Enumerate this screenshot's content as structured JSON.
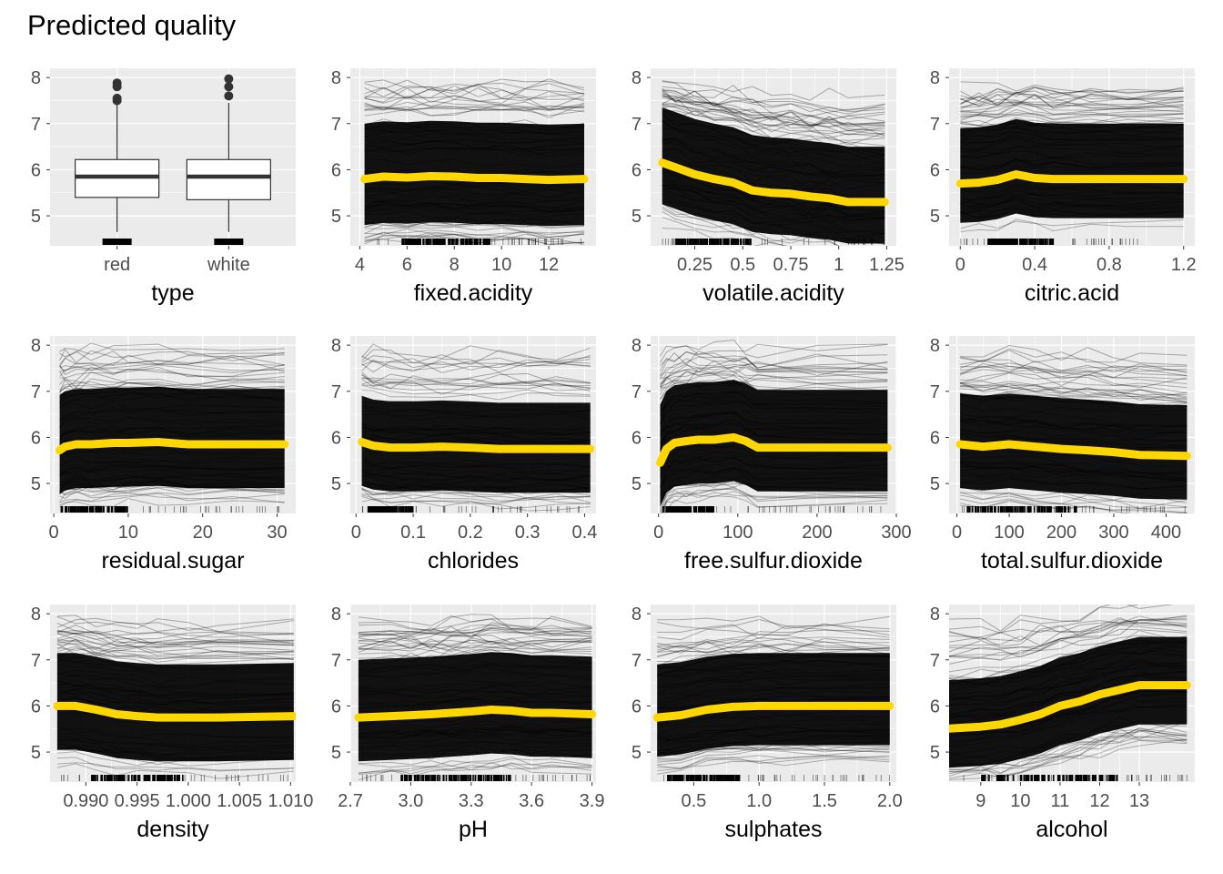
{
  "title": "Predicted quality",
  "colors": {
    "panel": "#EBEBEB",
    "grid": "#FFFFFF",
    "ice": "#000000",
    "pdp": "#FFD700",
    "axis_text": "#4D4D4D",
    "label": "#000000"
  },
  "chart_data": [
    {
      "type": "boxplot",
      "var": "type",
      "xlabel": "type",
      "categories": [
        "red",
        "white"
      ],
      "boxes": [
        {
          "name": "red",
          "q1": 5.4,
          "median": 5.85,
          "q3": 6.22,
          "lower": 4.65,
          "upper": 7.45,
          "outliers": [
            7.5,
            7.55,
            7.8,
            7.88
          ]
        },
        {
          "name": "white",
          "q1": 5.35,
          "median": 5.85,
          "q3": 6.22,
          "lower": 4.65,
          "upper": 7.45,
          "outliers": [
            7.6,
            7.8,
            7.97
          ]
        }
      ],
      "ylim": [
        4.35,
        8.2
      ],
      "yticks": [
        5,
        6,
        7,
        8
      ]
    },
    {
      "type": "line",
      "var": "fixed.acidity",
      "xlabel": "fixed.acidity",
      "xlim": [
        3.6,
        14.0
      ],
      "xticks": [
        4,
        6,
        8,
        10,
        12
      ],
      "pdp_x": [
        4.2,
        5.0,
        6.0,
        7.0,
        8.0,
        9.0,
        10.0,
        11.0,
        12.0,
        13.5
      ],
      "pdp_y": [
        5.8,
        5.85,
        5.83,
        5.86,
        5.85,
        5.82,
        5.82,
        5.8,
        5.78,
        5.8
      ],
      "ice_band": [
        4.85,
        7.05
      ],
      "rug_range": [
        4.6,
        13.4
      ],
      "rug_dense": [
        5.8,
        9.5
      ],
      "ylim": [
        4.35,
        8.2
      ],
      "yticks": [
        5,
        6,
        7,
        8
      ]
    },
    {
      "type": "line",
      "var": "volatile.acidity",
      "xlabel": "volatile.acidity",
      "xlim": [
        0.02,
        1.3
      ],
      "xticks": [
        0.25,
        0.5,
        0.75,
        1.0,
        1.25
      ],
      "pdp_x": [
        0.08,
        0.15,
        0.25,
        0.35,
        0.45,
        0.55,
        0.65,
        0.75,
        0.85,
        0.95,
        1.05,
        1.24
      ],
      "pdp_y": [
        6.15,
        6.05,
        5.9,
        5.8,
        5.72,
        5.55,
        5.5,
        5.48,
        5.42,
        5.38,
        5.3,
        5.3
      ],
      "ice_band": [
        4.95,
        7.05
      ],
      "rug_range": [
        0.08,
        1.24
      ],
      "rug_dense": [
        0.15,
        0.55
      ],
      "ylim": [
        4.35,
        8.2
      ],
      "yticks": [
        5,
        6,
        7,
        8
      ]
    },
    {
      "type": "line",
      "var": "citric.acid",
      "xlabel": "citric.acid",
      "xlim": [
        -0.06,
        1.26
      ],
      "xticks": [
        0.0,
        0.4,
        0.8,
        1.2
      ],
      "pdp_x": [
        0.0,
        0.1,
        0.2,
        0.3,
        0.4,
        0.5,
        0.7,
        0.9,
        1.2
      ],
      "pdp_y": [
        5.7,
        5.72,
        5.78,
        5.9,
        5.82,
        5.8,
        5.8,
        5.8,
        5.8
      ],
      "ice_band": [
        5.0,
        7.05
      ],
      "rug_range": [
        0.0,
        1.0
      ],
      "rug_dense": [
        0.15,
        0.5
      ],
      "ylim": [
        4.35,
        8.2
      ],
      "yticks": [
        5,
        6,
        7,
        8
      ]
    },
    {
      "type": "line",
      "var": "residual.sugar",
      "xlabel": "residual.sugar",
      "xlim": [
        -0.5,
        32.5
      ],
      "xticks": [
        0,
        10,
        20,
        30
      ],
      "pdp_x": [
        0.8,
        1.5,
        3,
        5,
        8,
        10,
        14,
        18,
        24,
        31
      ],
      "pdp_y": [
        5.72,
        5.8,
        5.85,
        5.85,
        5.88,
        5.88,
        5.9,
        5.85,
        5.85,
        5.85
      ],
      "ice_band": [
        4.9,
        7.05
      ],
      "rug_range": [
        0.8,
        31.0
      ],
      "rug_dense": [
        1.0,
        10.0
      ],
      "ylim": [
        4.35,
        8.2
      ],
      "yticks": [
        5,
        6,
        7,
        8
      ]
    },
    {
      "type": "line",
      "var": "chlorides",
      "xlabel": "chlorides",
      "xlim": [
        -0.01,
        0.42
      ],
      "xticks": [
        0.0,
        0.1,
        0.2,
        0.3,
        0.4
      ],
      "pdp_x": [
        0.01,
        0.03,
        0.06,
        0.1,
        0.15,
        0.2,
        0.25,
        0.3,
        0.35,
        0.41
      ],
      "pdp_y": [
        5.9,
        5.82,
        5.78,
        5.78,
        5.8,
        5.78,
        5.75,
        5.75,
        5.75,
        5.75
      ],
      "ice_band": [
        4.9,
        6.85
      ],
      "rug_range": [
        0.01,
        0.41
      ],
      "rug_dense": [
        0.02,
        0.1
      ],
      "ylim": [
        4.35,
        8.2
      ],
      "yticks": [
        5,
        6,
        7,
        8
      ]
    },
    {
      "type": "line",
      "var": "free.sulfur.dioxide",
      "xlabel": "free.sulfur.dioxide",
      "xlim": [
        -10,
        300
      ],
      "xticks": [
        0,
        100,
        200,
        300
      ],
      "pdp_x": [
        2,
        10,
        20,
        35,
        50,
        70,
        95,
        110,
        125,
        200,
        289
      ],
      "pdp_y": [
        5.45,
        5.75,
        5.88,
        5.92,
        5.95,
        5.95,
        6.0,
        5.92,
        5.78,
        5.78,
        5.78
      ],
      "ice_band": [
        4.9,
        7.1
      ],
      "rug_range": [
        2,
        289
      ],
      "rug_dense": [
        5,
        70
      ],
      "ylim": [
        4.35,
        8.2
      ],
      "yticks": [
        5,
        6,
        7,
        8
      ]
    },
    {
      "type": "line",
      "var": "total.sulfur.dioxide",
      "xlabel": "total.sulfur.dioxide",
      "xlim": [
        -15,
        455
      ],
      "xticks": [
        0,
        100,
        200,
        300,
        400
      ],
      "pdp_x": [
        6,
        50,
        100,
        150,
        200,
        250,
        300,
        350,
        440
      ],
      "pdp_y": [
        5.85,
        5.8,
        5.85,
        5.8,
        5.75,
        5.72,
        5.68,
        5.62,
        5.6
      ],
      "ice_band": [
        4.9,
        6.95
      ],
      "rug_range": [
        6,
        440
      ],
      "rug_dense": [
        20,
        230
      ],
      "ylim": [
        4.35,
        8.2
      ],
      "yticks": [
        5,
        6,
        7,
        8
      ]
    },
    {
      "type": "line",
      "var": "density",
      "xlabel": "density",
      "xlim": [
        0.9865,
        1.0105
      ],
      "xticks": [
        0.99,
        0.995,
        1.0,
        1.005,
        1.01
      ],
      "xticklabels": [
        "0.990",
        "0.995",
        "1.000",
        "1.005",
        "1.010"
      ],
      "pdp_x": [
        0.9872,
        0.989,
        0.991,
        0.993,
        0.995,
        0.997,
        1.0,
        1.003,
        1.0103
      ],
      "pdp_y": [
        6.0,
        6.0,
        5.92,
        5.82,
        5.78,
        5.75,
        5.75,
        5.75,
        5.78
      ],
      "ice_band": [
        4.9,
        7.0
      ],
      "rug_range": [
        0.9872,
        1.0103
      ],
      "rug_dense": [
        0.9905,
        0.9995
      ],
      "ylim": [
        4.35,
        8.2
      ],
      "yticks": [
        5,
        6,
        7,
        8
      ]
    },
    {
      "type": "line",
      "var": "pH",
      "xlabel": "pH",
      "xlim": [
        2.7,
        3.92
      ],
      "xticks": [
        2.7,
        3.0,
        3.3,
        3.6,
        3.9
      ],
      "xticklabels": [
        "2.7",
        "3.0",
        "3.3",
        "3.6",
        "3.9"
      ],
      "pdp_x": [
        2.74,
        2.9,
        3.0,
        3.1,
        3.2,
        3.3,
        3.4,
        3.5,
        3.6,
        3.7,
        3.9
      ],
      "pdp_y": [
        5.75,
        5.78,
        5.8,
        5.82,
        5.85,
        5.88,
        5.92,
        5.9,
        5.85,
        5.85,
        5.82
      ],
      "ice_band": [
        4.9,
        7.1
      ],
      "rug_range": [
        2.74,
        3.9
      ],
      "rug_dense": [
        2.95,
        3.5
      ],
      "ylim": [
        4.35,
        8.2
      ],
      "yticks": [
        5,
        6,
        7,
        8
      ]
    },
    {
      "type": "line",
      "var": "sulphates",
      "xlabel": "sulphates",
      "xlim": [
        0.17,
        2.05
      ],
      "xticks": [
        0.5,
        1.0,
        1.5,
        2.0
      ],
      "xticklabels": [
        "0.5",
        "1.0",
        "1.5",
        "2.0"
      ],
      "pdp_x": [
        0.22,
        0.4,
        0.6,
        0.8,
        1.0,
        1.2,
        1.5,
        2.0
      ],
      "pdp_y": [
        5.75,
        5.8,
        5.92,
        5.98,
        6.0,
        6.0,
        6.0,
        6.0
      ],
      "ice_band": [
        5.0,
        7.0
      ],
      "rug_range": [
        0.22,
        2.0
      ],
      "rug_dense": [
        0.3,
        0.85
      ],
      "ylim": [
        4.35,
        8.2
      ],
      "yticks": [
        5,
        6,
        7,
        8
      ]
    },
    {
      "type": "line",
      "var": "alcohol",
      "xlabel": "alcohol",
      "xlim": [
        8.2,
        14.4
      ],
      "xticks": [
        9,
        10,
        11,
        12,
        13
      ],
      "pdp_x": [
        8.0,
        9.0,
        9.5,
        10.0,
        10.5,
        11.0,
        11.5,
        12.0,
        12.5,
        13.0,
        14.2
      ],
      "pdp_y": [
        5.5,
        5.55,
        5.6,
        5.7,
        5.82,
        6.0,
        6.1,
        6.25,
        6.35,
        6.45,
        6.45
      ],
      "ice_band": [
        5.0,
        6.9
      ],
      "rug_range": [
        8.4,
        14.2
      ],
      "rug_dense": [
        9.0,
        12.5
      ],
      "ylim": [
        4.35,
        8.2
      ],
      "yticks": [
        5,
        6,
        7,
        8
      ]
    }
  ]
}
